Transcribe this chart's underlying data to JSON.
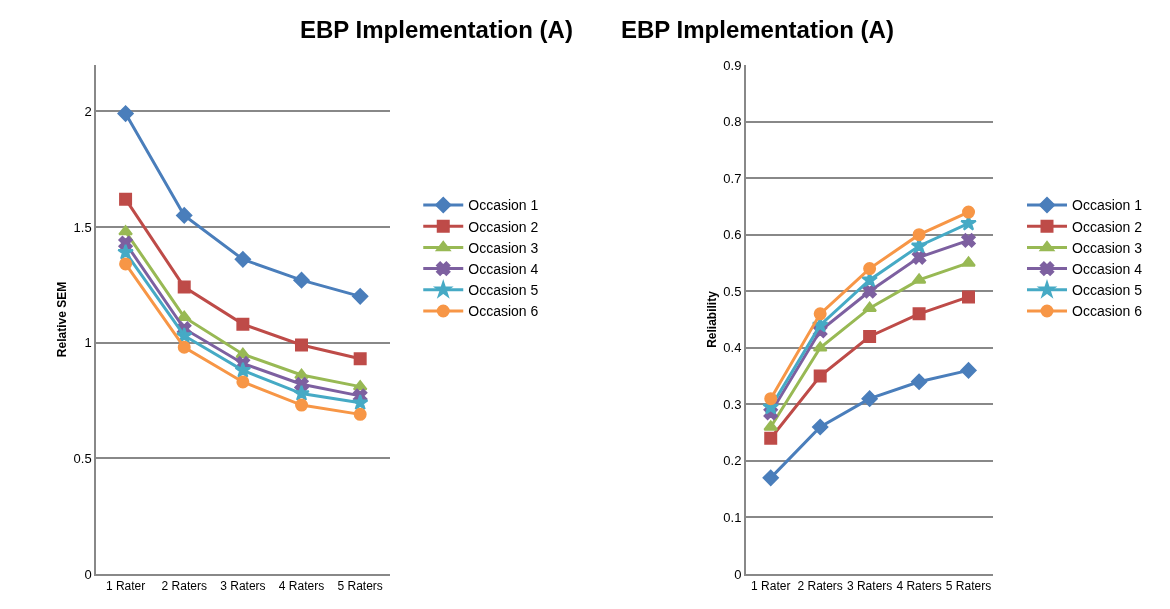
{
  "chart_data": [
    {
      "type": "line",
      "title": "EBP Implementation (A)",
      "ylabel": "Relative SEM",
      "categories": [
        "1 Rater",
        "2 Raters",
        "3 Raters",
        "4 Raters",
        "5 Raters"
      ],
      "ylim": [
        0,
        2.2
      ],
      "yticks": [
        0,
        0.5,
        1,
        1.5,
        2
      ],
      "grid": "y",
      "legend": "right",
      "series": [
        {
          "name": "Occasion 1",
          "color": "#4a7ebb",
          "marker": "diamond",
          "values": [
            1.99,
            1.55,
            1.36,
            1.27,
            1.2
          ]
        },
        {
          "name": "Occasion 2",
          "color": "#be4b48",
          "marker": "square",
          "values": [
            1.62,
            1.24,
            1.08,
            0.99,
            0.93
          ]
        },
        {
          "name": "Occasion 3",
          "color": "#98b954",
          "marker": "triangle",
          "values": [
            1.48,
            1.11,
            0.95,
            0.86,
            0.81
          ]
        },
        {
          "name": "Occasion 4",
          "color": "#7d60a0",
          "marker": "cross",
          "values": [
            1.43,
            1.06,
            0.91,
            0.82,
            0.77
          ]
        },
        {
          "name": "Occasion 5",
          "color": "#46aac5",
          "marker": "star",
          "values": [
            1.39,
            1.03,
            0.88,
            0.78,
            0.74
          ]
        },
        {
          "name": "Occasion 6",
          "color": "#f79646",
          "marker": "circle",
          "values": [
            1.34,
            0.98,
            0.83,
            0.73,
            0.69
          ]
        }
      ]
    },
    {
      "type": "line",
      "title": "EBP Implementation (A)",
      "ylabel": "Reliability",
      "categories": [
        "1 Rater",
        "2 Raters",
        "3 Raters",
        "4 Raters",
        "5 Raters"
      ],
      "ylim": [
        0,
        0.9
      ],
      "yticks": [
        0,
        0.1,
        0.2,
        0.3,
        0.4,
        0.5,
        0.6,
        0.7,
        0.8,
        0.9
      ],
      "grid": "y",
      "legend": "right",
      "series": [
        {
          "name": "Occasion 1",
          "color": "#4a7ebb",
          "marker": "diamond",
          "values": [
            0.17,
            0.26,
            0.31,
            0.34,
            0.36
          ]
        },
        {
          "name": "Occasion 2",
          "color": "#be4b48",
          "marker": "square",
          "values": [
            0.24,
            0.35,
            0.42,
            0.46,
            0.49
          ]
        },
        {
          "name": "Occasion 3",
          "color": "#98b954",
          "marker": "triangle",
          "values": [
            0.26,
            0.4,
            0.47,
            0.52,
            0.55
          ]
        },
        {
          "name": "Occasion 4",
          "color": "#7d60a0",
          "marker": "cross",
          "values": [
            0.285,
            0.43,
            0.5,
            0.56,
            0.59
          ]
        },
        {
          "name": "Occasion 5",
          "color": "#46aac5",
          "marker": "star",
          "values": [
            0.295,
            0.44,
            0.52,
            0.58,
            0.62
          ]
        },
        {
          "name": "Occasion 6",
          "color": "#f79646",
          "marker": "circle",
          "values": [
            0.31,
            0.46,
            0.54,
            0.6,
            0.64
          ]
        }
      ]
    }
  ]
}
